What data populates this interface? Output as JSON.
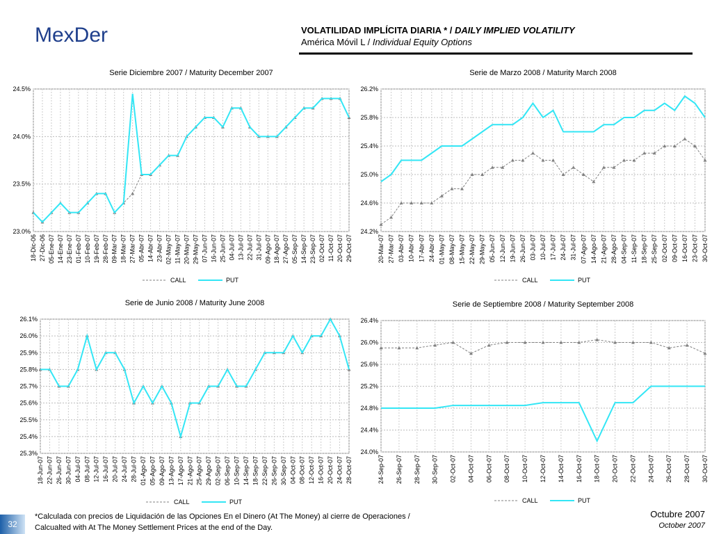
{
  "header": {
    "logo": "MexDer",
    "title": [
      "VOLATILIDAD IMPLÍCITA DIARIA * / ",
      "DAILY IMPLIED VOLATILITY"
    ],
    "subtitle": [
      "América Móvil L / ",
      "Individual Equity Options"
    ]
  },
  "footnote": [
    "*Calculada con precios de Liquidación de las Opciones En el Dinero (At The Money) al cierre de Operaciones /",
    "Calcualted with At The Money Settlement Prices at the end of the Day."
  ],
  "date": [
    "Octubre 2007",
    "October 2007"
  ],
  "page_number": "32",
  "chart_data": [
    {
      "type": "line",
      "title": "Serie Diciembre 2007 / Maturity December 2007",
      "grid": true,
      "legend": "bottom",
      "categories": [
        "18-Dic-06",
        "27-Dic-06",
        "05-Ene-07",
        "14-Ene-07",
        "23-Ene-07",
        "01-Feb-07",
        "10-Feb-07",
        "19-Feb-07",
        "28-Feb-07",
        "09-Mar-07",
        "18-Mar-07",
        "27-Mar-07",
        "05-Abr-07",
        "14-Abr-07",
        "23-Abr-07",
        "02-May-07",
        "11-May-07",
        "20-May-07",
        "29-May-07",
        "07-Jun-07",
        "16-Jun-07",
        "25-Jun-07",
        "04-Jul-07",
        "13-Jul-07",
        "22-Jul-07",
        "31-Jul-07",
        "09-Ago-07",
        "18-Ago-07",
        "27-Ago-07",
        "05-Sep-07",
        "14-Sep-07",
        "23-Sep-07",
        "02-Oct-07",
        "11-Oct-07",
        "20-Oct-07",
        "29-Oct-07"
      ],
      "ylim": [
        23.0,
        24.5
      ],
      "yticks": [
        {
          "value": 23.0,
          "label": "23.0%"
        },
        {
          "value": 23.5,
          "label": "23.5%"
        },
        {
          "value": 24.0,
          "label": "24.0%"
        },
        {
          "value": 24.5,
          "label": "24.5%"
        }
      ],
      "series": [
        {
          "name": "CALL",
          "color": "#808080",
          "values": [
            23.2,
            23.1,
            23.2,
            23.3,
            23.2,
            23.2,
            23.3,
            23.4,
            23.4,
            23.2,
            23.3,
            23.4,
            23.6,
            23.6,
            23.7,
            23.8,
            23.8,
            24.0,
            24.1,
            24.2,
            24.2,
            24.1,
            24.3,
            24.3,
            24.1,
            24.0,
            24.0,
            24.0,
            24.1,
            24.2,
            24.3,
            24.3,
            24.4,
            24.4,
            24.4,
            24.2
          ]
        },
        {
          "name": "PUT",
          "color": "#33e6f5",
          "values": [
            23.2,
            23.1,
            23.2,
            23.3,
            23.2,
            23.2,
            23.3,
            23.4,
            23.4,
            23.2,
            23.3,
            24.45,
            23.6,
            23.6,
            23.7,
            23.8,
            23.8,
            24.0,
            24.1,
            24.2,
            24.2,
            24.1,
            24.3,
            24.3,
            24.1,
            24.0,
            24.0,
            24.0,
            24.1,
            24.2,
            24.3,
            24.3,
            24.4,
            24.4,
            24.4,
            24.2
          ]
        }
      ]
    },
    {
      "type": "line",
      "title": "Serie de Marzo 2008 / Maturity March 2008",
      "grid": true,
      "legend": "bottom",
      "categories": [
        "20-Mar-07",
        "27-Mar-07",
        "03-Abr-07",
        "10-Abr-07",
        "17-Abr-07",
        "24-Abr-07",
        "01-May-07",
        "08-May-07",
        "15-May-07",
        "22-May-07",
        "29-May-07",
        "05-Jun-07",
        "12-Jun-07",
        "19-Jun-07",
        "26-Jun-07",
        "03-Jul-07",
        "10-Jul-07",
        "17-Jul-07",
        "24-Jul-07",
        "31-Jul-07",
        "07-Ago-07",
        "14-Ago-07",
        "21-Ago-07",
        "28-Ago-07",
        "04-Sep-07",
        "11-Sep-07",
        "18-Sep-07",
        "25-Sep-07",
        "02-Oct-07",
        "09-Oct-07",
        "16-Oct-07",
        "23-Oct-07",
        "30-Oct-07"
      ],
      "ylim": [
        24.2,
        26.2
      ],
      "yticks": [
        {
          "value": 24.2,
          "label": "24.2%"
        },
        {
          "value": 24.6,
          "label": "24.6%"
        },
        {
          "value": 25.0,
          "label": "25.0%"
        },
        {
          "value": 25.4,
          "label": "25.4%"
        },
        {
          "value": 25.8,
          "label": "25.8%"
        },
        {
          "value": 26.2,
          "label": "26.2%"
        }
      ],
      "series": [
        {
          "name": "CALL",
          "color": "#808080",
          "values": [
            24.3,
            24.4,
            24.6,
            24.6,
            24.6,
            24.6,
            24.7,
            24.8,
            24.8,
            25.0,
            25.0,
            25.1,
            25.1,
            25.2,
            25.2,
            25.3,
            25.2,
            25.2,
            25.0,
            25.1,
            25.0,
            24.9,
            25.1,
            25.1,
            25.2,
            25.2,
            25.3,
            25.3,
            25.4,
            25.4,
            25.5,
            25.4,
            25.2
          ]
        },
        {
          "name": "PUT",
          "color": "#33e6f5",
          "values": [
            24.9,
            25.0,
            25.2,
            25.2,
            25.2,
            25.3,
            25.4,
            25.4,
            25.4,
            25.5,
            25.6,
            25.7,
            25.7,
            25.7,
            25.8,
            26.0,
            25.8,
            25.9,
            25.6,
            25.6,
            25.6,
            25.6,
            25.7,
            25.7,
            25.8,
            25.8,
            25.9,
            25.9,
            26.0,
            25.9,
            26.1,
            26.0,
            25.8
          ]
        }
      ]
    },
    {
      "type": "line",
      "title": "Serie de Junio 2008 / Maturity June 2008",
      "grid": true,
      "legend": "bottom",
      "categories": [
        "18-Jun-07",
        "22-Jun-07",
        "26-Jun-07",
        "30-Jun-07",
        "04-Jul-07",
        "08-Jul-07",
        "12-Jul-07",
        "16-Jul-07",
        "20-Jul-07",
        "24-Jul-07",
        "28-Jul-07",
        "01-Ago-07",
        "05-Ago-07",
        "09-Ago-07",
        "13-Ago-07",
        "17-Ago-07",
        "21-Ago-07",
        "25-Ago-07",
        "29-Ago-07",
        "02-Sep-07",
        "06-Sep-07",
        "10-Sep-07",
        "14-Sep-07",
        "18-Sep-07",
        "22-Sep-07",
        "26-Sep-07",
        "30-Sep-07",
        "04-Oct-07",
        "08-Oct-07",
        "12-Oct-07",
        "16-Oct-07",
        "20-Oct-07",
        "24-Oct-07",
        "28-Oct-07"
      ],
      "ylim": [
        25.3,
        26.1
      ],
      "yticks": [
        {
          "value": 25.3,
          "label": "25.3%"
        },
        {
          "value": 25.4,
          "label": "25.4%"
        },
        {
          "value": 25.5,
          "label": "25.5%"
        },
        {
          "value": 25.6,
          "label": "25.6%"
        },
        {
          "value": 25.7,
          "label": "25.7%"
        },
        {
          "value": 25.8,
          "label": "25.8%"
        },
        {
          "value": 25.9,
          "label": "25.9%"
        },
        {
          "value": 26.0,
          "label": "26.0%"
        },
        {
          "value": 26.1,
          "label": "26.1%"
        }
      ],
      "series": [
        {
          "name": "CALL",
          "color": "#808080",
          "values": [
            25.8,
            25.8,
            25.7,
            25.7,
            25.8,
            26.0,
            25.8,
            25.9,
            25.9,
            25.8,
            25.6,
            25.7,
            25.6,
            25.7,
            25.6,
            25.4,
            25.6,
            25.6,
            25.7,
            25.7,
            25.8,
            25.7,
            25.7,
            25.8,
            25.9,
            25.9,
            25.9,
            26.0,
            25.9,
            26.0,
            26.0,
            26.1,
            26.0,
            25.8
          ]
        },
        {
          "name": "PUT",
          "color": "#33e6f5",
          "values": [
            25.8,
            25.8,
            25.7,
            25.7,
            25.8,
            26.0,
            25.8,
            25.9,
            25.9,
            25.8,
            25.6,
            25.7,
            25.6,
            25.7,
            25.6,
            25.4,
            25.6,
            25.6,
            25.7,
            25.7,
            25.8,
            25.7,
            25.7,
            25.8,
            25.9,
            25.9,
            25.9,
            26.0,
            25.9,
            26.0,
            26.0,
            26.1,
            26.0,
            25.8
          ]
        }
      ]
    },
    {
      "type": "line",
      "title": "Serie de Septiembre 2008 / Maturity September 2008",
      "grid": true,
      "legend": "bottom",
      "categories": [
        "24-Sep-07",
        "26-Sep-07",
        "28-Sep-07",
        "30-Sep-07",
        "02-Oct-07",
        "04-Oct-07",
        "06-Oct-07",
        "08-Oct-07",
        "10-Oct-07",
        "12-Oct-07",
        "14-Oct-07",
        "16-Oct-07",
        "18-Oct-07",
        "20-Oct-07",
        "22-Oct-07",
        "24-Oct-07",
        "26-Oct-07",
        "28-Oct-07",
        "30-Oct-07"
      ],
      "ylim": [
        24.0,
        26.4
      ],
      "yticks": [
        {
          "value": 24.0,
          "label": "24.0%"
        },
        {
          "value": 24.4,
          "label": "24.4%"
        },
        {
          "value": 24.8,
          "label": "24.8%"
        },
        {
          "value": 25.2,
          "label": "25.2%"
        },
        {
          "value": 25.6,
          "label": "25.6%"
        },
        {
          "value": 26.0,
          "label": "26.0%"
        },
        {
          "value": 26.4,
          "label": "26.4%"
        }
      ],
      "series": [
        {
          "name": "CALL",
          "color": "#808080",
          "values": [
            25.9,
            25.9,
            25.9,
            25.95,
            26.0,
            25.8,
            25.95,
            26.0,
            26.0,
            26.0,
            26.0,
            26.0,
            26.05,
            26.0,
            26.0,
            26.0,
            25.9,
            25.95,
            25.8
          ]
        },
        {
          "name": "PUT",
          "color": "#33e6f5",
          "values": [
            24.8,
            24.8,
            24.8,
            24.8,
            24.85,
            24.85,
            24.85,
            24.85,
            24.85,
            24.9,
            24.9,
            24.9,
            24.2,
            24.9,
            24.9,
            25.2,
            25.2,
            25.2,
            25.2
          ]
        }
      ]
    }
  ]
}
